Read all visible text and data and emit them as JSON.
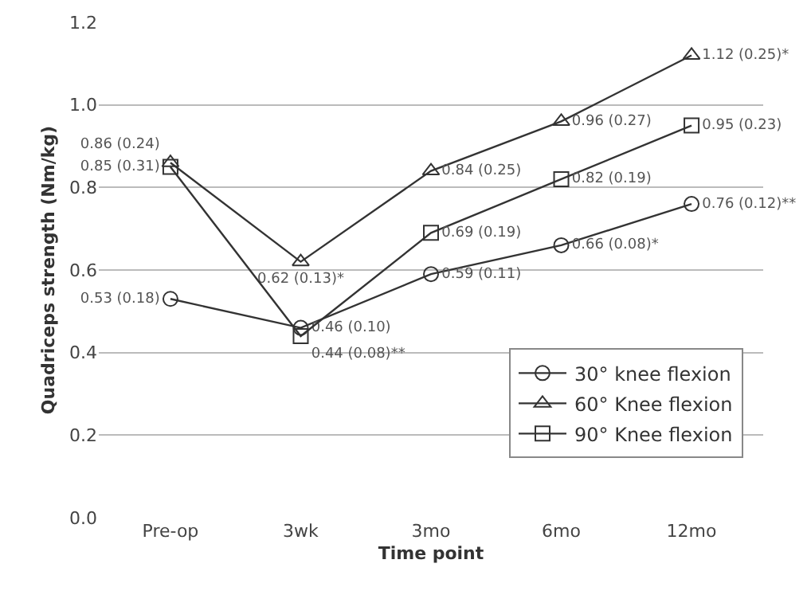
{
  "chart_data": {
    "type": "line",
    "xlabel": "Time point",
    "ylabel": "Quadriceps strength (Nm/kg)",
    "categories": [
      "Pre-op",
      "3wk",
      "3mo",
      "6mo",
      "12mo"
    ],
    "ylim": [
      0,
      1.2
    ],
    "yticks": [
      {
        "value": 0,
        "label": "0.0"
      },
      0.2,
      0.4,
      0.6,
      0.8,
      {
        "value": 1,
        "label": "1.0"
      },
      1.2
    ],
    "grid": "y",
    "legend": "bottom right",
    "line_style": "solid",
    "series": [
      {
        "name": "30° knee flexion",
        "color": "#333333",
        "marker": "circle",
        "values": [
          0.53,
          0.46,
          0.59,
          0.66,
          0.76
        ],
        "value_labels": [
          "0.53 (0.18)",
          "0.46 (0.10)",
          "0.59 (0.11)",
          "0.66 (0.08)*",
          "0.76 (0.12)**"
        ]
      },
      {
        "name": "60° Knee flexion",
        "color": "#333333",
        "marker": "triangle",
        "values": [
          0.86,
          0.62,
          0.84,
          0.96,
          1.12
        ],
        "value_labels": [
          "0.86 (0.24)",
          "0.62 (0.13)*",
          "0.84 (0.25)",
          "0.96 (0.27)",
          "1.12 (0.25)*"
        ]
      },
      {
        "name": "90° Knee flexion",
        "color": "#333333",
        "marker": "square",
        "values": [
          0.85,
          0.44,
          0.69,
          0.82,
          0.95
        ],
        "value_labels": [
          "0.85 (0.31)",
          "0.44 (0.08)**",
          "0.69 (0.19)",
          "0.82 (0.19)",
          "0.95 (0.23)"
        ]
      }
    ]
  }
}
